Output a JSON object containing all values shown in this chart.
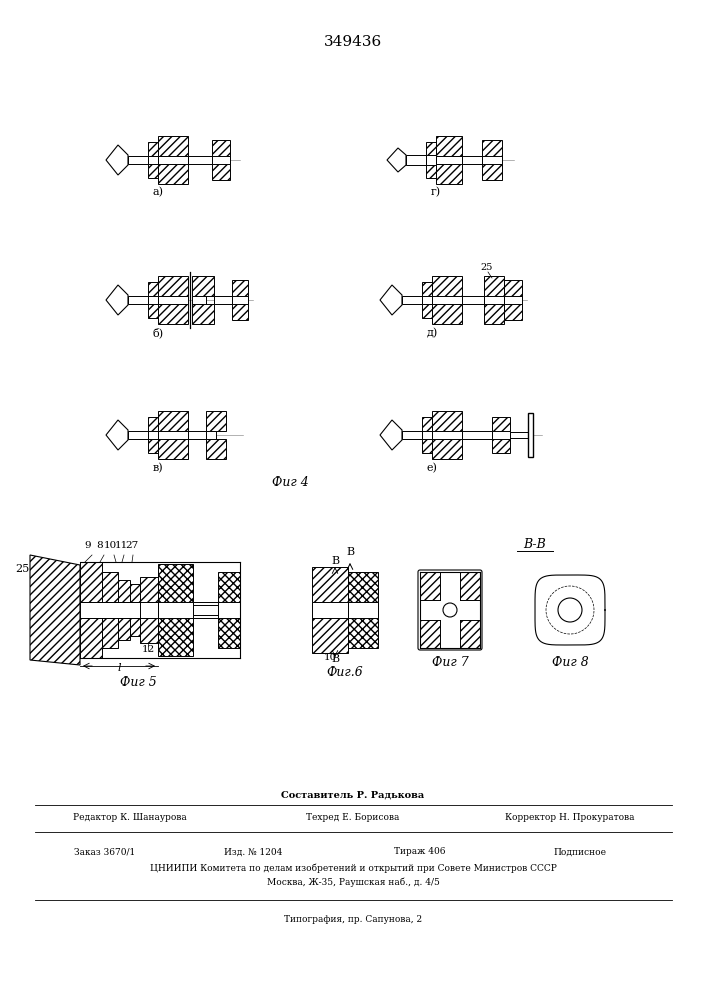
{
  "patent_number": "349436",
  "background_color": "#ffffff",
  "line_color": "#000000",
  "fig4_label": "Фиг 4",
  "fig5_label": "Фиг 5",
  "fig6_label": "Фиг.6",
  "fig7_label": "Фиг 7",
  "fig8_label": "Фиг 8",
  "sub_a": "а)",
  "sub_g": "г)",
  "sub_b": "б)",
  "sub_d": "д)",
  "sub_v": "в)",
  "sub_e": "е)",
  "label_25": "25",
  "label_l": "l",
  "label_9": "9",
  "label_8": "8",
  "label_10": "10",
  "label_11": "11",
  "label_27": "27",
  "label_12": "12",
  "label_B": "B",
  "label_BB": "B-B",
  "label_26": "25",
  "footer_sestavitel": "Составитель Р. Радькова",
  "footer_redaktor": "Редактор К. Шанаурова",
  "footer_tehred": "Техред Е. Борисова",
  "footer_korrektor": "Корректор Н. Прокуратова",
  "footer_zakaz": "Заказ 3670/1",
  "footer_izd": "Изд. № 1204",
  "footer_tirazh": "Тираж 406",
  "footer_podpisnoe": "Подписное",
  "footer_cnipi": "ЦНИИПИ Комитета по делам изобретений и открытий при Совете Министров СССР",
  "footer_moskva": "Москва, Ж-35, Раушская наб., д. 4/5",
  "footer_tipografia": "Типография, пр. Сапунова, 2"
}
